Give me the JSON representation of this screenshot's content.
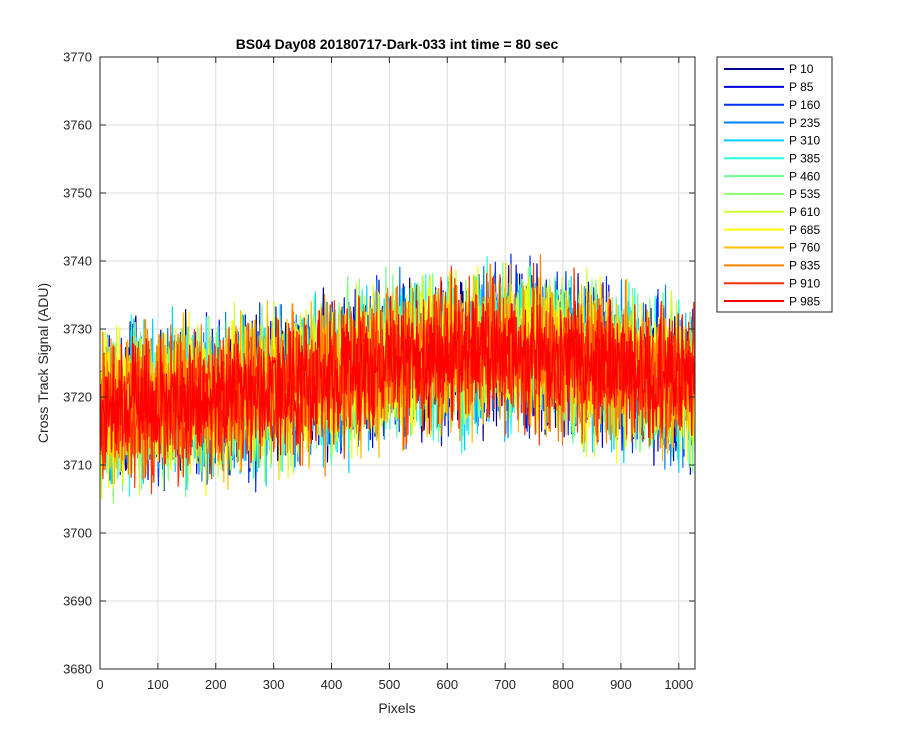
{
  "chart_data": {
    "type": "line",
    "title": "BS04 Day08 20180717-Dark-033 int time = 80 sec",
    "xlabel": "Pixels",
    "ylabel": "Cross Track Signal (ADU)",
    "xlim": [
      0,
      1028
    ],
    "ylim": [
      3680,
      3770
    ],
    "xticks": [
      0,
      100,
      200,
      300,
      400,
      500,
      600,
      700,
      800,
      900,
      1000
    ],
    "yticks": [
      3680,
      3690,
      3700,
      3710,
      3720,
      3730,
      3740,
      3750,
      3760,
      3770
    ],
    "xtick_labels": [
      "0",
      "100",
      "200",
      "300",
      "400",
      "500",
      "600",
      "700",
      "800",
      "900",
      "1000"
    ],
    "ytick_labels": [
      "3680",
      "3690",
      "3700",
      "3710",
      "3720",
      "3730",
      "3740",
      "3750",
      "3760",
      "3770"
    ],
    "grid": true,
    "legend_position": "outside-right",
    "x_range": [
      1,
      1028
    ],
    "trend": {
      "x": [
        0,
        100,
        200,
        300,
        400,
        500,
        600,
        700,
        800,
        900,
        1028
      ],
      "y": [
        3718,
        3719,
        3720,
        3721,
        3723,
        3725,
        3726,
        3727,
        3726,
        3724,
        3722
      ]
    },
    "series": [
      {
        "name": "P 10",
        "color": "#00008f",
        "spread": 9.5
      },
      {
        "name": "P 85",
        "color": "#0000df",
        "spread": 9.5
      },
      {
        "name": "P 160",
        "color": "#0030ff",
        "spread": 9.5
      },
      {
        "name": "P 235",
        "color": "#0080ff",
        "spread": 9.5
      },
      {
        "name": "P 310",
        "color": "#00cfff",
        "spread": 9.5
      },
      {
        "name": "P 385",
        "color": "#20ffdf",
        "spread": 9.5
      },
      {
        "name": "P 460",
        "color": "#70ff8f",
        "spread": 9.5
      },
      {
        "name": "P 535",
        "color": "#8fff70",
        "spread": 9.5
      },
      {
        "name": "P 610",
        "color": "#cfff30",
        "spread": 9.5
      },
      {
        "name": "P 685",
        "color": "#ffff00",
        "spread": 9.5
      },
      {
        "name": "P 760",
        "color": "#ffbf00",
        "spread": 9.5
      },
      {
        "name": "P 835",
        "color": "#ff8000",
        "spread": 9.5
      },
      {
        "name": "P 910",
        "color": "#ff3000",
        "spread": 9.5
      },
      {
        "name": "P 985",
        "color": "#ff0000",
        "spread": 7.5
      }
    ]
  }
}
